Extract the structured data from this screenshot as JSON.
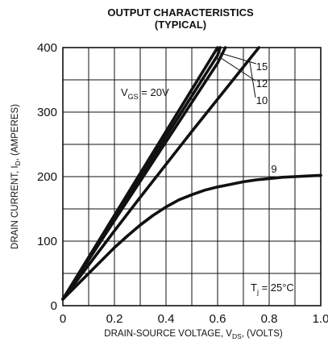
{
  "chart_data": {
    "type": "line",
    "title": "OUTPUT CHARACTERISTICS",
    "subtitle": "(TYPICAL)",
    "xlabel": "DRAIN-SOURCE VOLTAGE, V",
    "xlabel_sub": "DS",
    "xlabel_suffix": ", (VOLTS)",
    "ylabel": "DRAIN CURRENT, I",
    "ylabel_sub": "D",
    "ylabel_suffix": ", (AMPERES)",
    "xlim": [
      0,
      1.0
    ],
    "ylim": [
      0,
      400
    ],
    "xticks": [
      0,
      0.2,
      0.4,
      0.6,
      0.8,
      1.0
    ],
    "xtick_labels": [
      "0",
      "0.2",
      "0.4",
      "0.6",
      "0.8",
      "1.0"
    ],
    "yticks": [
      0,
      100,
      200,
      300,
      400
    ],
    "ytick_labels": [
      "0",
      "100",
      "200",
      "300",
      "400"
    ],
    "x_grid_step": 0.1,
    "y_grid_step": 50,
    "grid": true,
    "annotation": {
      "prefix": "T",
      "sub": "j",
      "suffix": " = 25°C"
    },
    "series": [
      {
        "name": "20V",
        "label_prefix": "V",
        "label_sub": "GS",
        "label_suffix": " = 20V",
        "x": [
          0,
          0.1,
          0.2,
          0.3,
          0.4,
          0.5,
          0.6
        ],
        "y": [
          10,
          75,
          140,
          205,
          270,
          335,
          400
        ]
      },
      {
        "name": "15",
        "x": [
          0,
          0.1,
          0.2,
          0.3,
          0.4,
          0.5,
          0.6,
          0.61
        ],
        "y": [
          10,
          73,
          136,
          199,
          262,
          325,
          388,
          400
        ]
      },
      {
        "name": "12",
        "x": [
          0,
          0.1,
          0.2,
          0.3,
          0.4,
          0.5,
          0.6,
          0.63
        ],
        "y": [
          10,
          71,
          132,
          193,
          254,
          315,
          376,
          400
        ]
      },
      {
        "name": "10",
        "x": [
          0,
          0.1,
          0.2,
          0.3,
          0.4,
          0.5,
          0.6,
          0.7,
          0.76
        ],
        "y": [
          10,
          63,
          116,
          168,
          219,
          270,
          320,
          370,
          400
        ]
      },
      {
        "name": "9",
        "x": [
          0,
          0.05,
          0.1,
          0.15,
          0.2,
          0.25,
          0.3,
          0.35,
          0.4,
          0.45,
          0.5,
          0.55,
          0.6,
          0.65,
          0.7,
          0.75,
          0.8,
          0.85,
          0.9,
          0.95,
          1.0
        ],
        "y": [
          10,
          30,
          50,
          70,
          90,
          108,
          125,
          140,
          153,
          164,
          172,
          179,
          184,
          188,
          192,
          195,
          197,
          199,
          200,
          201,
          202
        ]
      }
    ]
  }
}
